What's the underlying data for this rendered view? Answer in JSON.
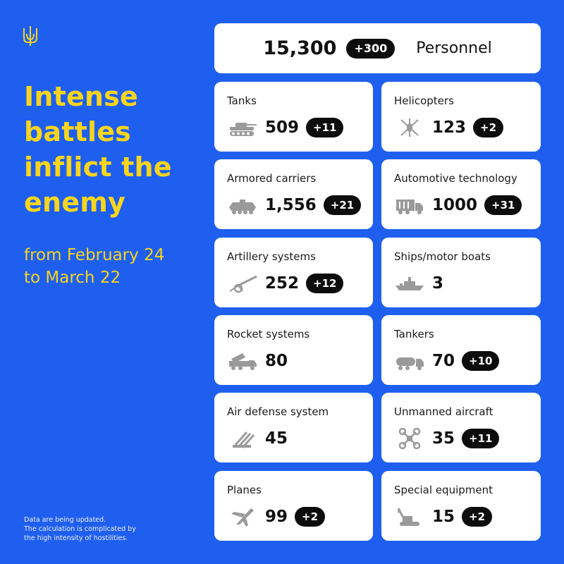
{
  "headline": [
    "Intense",
    "battles",
    "inflict the",
    "enemy"
  ],
  "period": [
    "from February 24",
    "to March 22"
  ],
  "footnote": [
    "Data are being updated.",
    "The calculation is complicated by",
    "the high intensity of hostilities."
  ],
  "personnel": {
    "value": "15,300",
    "delta": "+300",
    "label": "Personnel"
  },
  "cards": [
    {
      "title": "Tanks",
      "value": "509",
      "delta": "+11",
      "icon": "tank-icon"
    },
    {
      "title": "Helicopters",
      "value": "123",
      "delta": "+2",
      "icon": "helicopter-icon"
    },
    {
      "title": "Armored carriers",
      "value": "1,556",
      "delta": "+21",
      "icon": "armored-carrier-icon"
    },
    {
      "title": "Automotive technology",
      "value": "1000",
      "delta": "+31",
      "icon": "truck-icon"
    },
    {
      "title": "Artillery systems",
      "value": "252",
      "delta": "+12",
      "icon": "artillery-icon"
    },
    {
      "title": "Ships/motor boats",
      "value": "3",
      "delta": "",
      "icon": "ship-icon"
    },
    {
      "title": "Rocket systems",
      "value": "80",
      "delta": "",
      "icon": "rocket-launcher-icon"
    },
    {
      "title": "Tankers",
      "value": "70",
      "delta": "+10",
      "icon": "tanker-truck-icon"
    },
    {
      "title": "Air defense system",
      "value": "45",
      "delta": "",
      "icon": "air-defense-icon"
    },
    {
      "title": "Unmanned aircraft",
      "value": "35",
      "delta": "+11",
      "icon": "drone-icon"
    },
    {
      "title": "Planes",
      "value": "99",
      "delta": "+2",
      "icon": "plane-icon"
    },
    {
      "title": "Special equipment",
      "value": "15",
      "delta": "+2",
      "icon": "crane-icon"
    }
  ],
  "colors": {
    "background": "#1f5ff0",
    "accent": "#f7d51c",
    "card": "#ffffff",
    "pill": "#0d0d0d",
    "icon": "#9a9a9a"
  }
}
